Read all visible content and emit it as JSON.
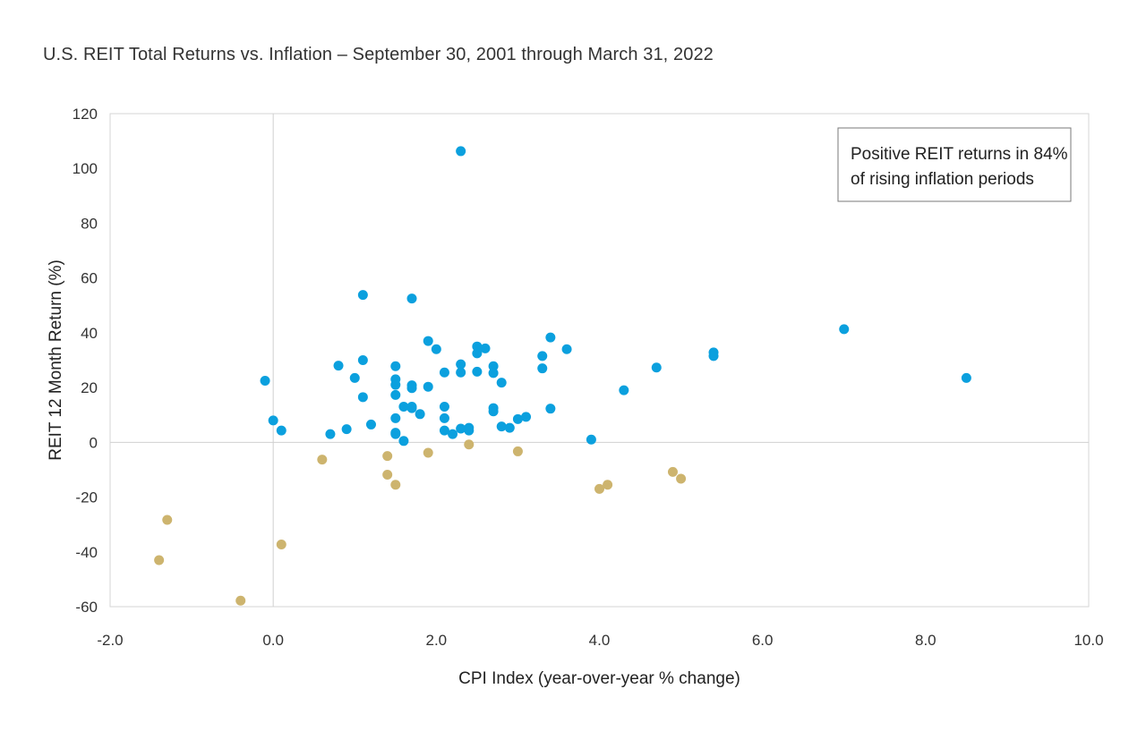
{
  "chart_data": {
    "type": "scatter",
    "title": "U.S. REIT Total Returns vs. Inflation – September 30, 2001 through March 31, 2022",
    "xlabel": "CPI Index (year-over-year % change)",
    "ylabel": "REIT 12 Month Return (%)",
    "xlim": [
      -2,
      10
    ],
    "ylim": [
      -60,
      120
    ],
    "xticks": [
      -2,
      0,
      2,
      4,
      6,
      8,
      10
    ],
    "xtick_labels": [
      "-2.0",
      "0.0",
      "2.0",
      "4.0",
      "6.0",
      "8.0",
      "10.0"
    ],
    "yticks": [
      -60,
      -40,
      -20,
      0,
      20,
      40,
      60,
      80,
      100,
      120
    ],
    "ytick_labels": [
      "-60",
      "-40",
      "-20",
      "0",
      "20",
      "40",
      "60",
      "80",
      "100",
      "120"
    ],
    "grid": false,
    "annotation": {
      "lines": [
        "Positive REIT returns in 84%",
        "of rising inflation periods"
      ]
    },
    "series": [
      {
        "color": "#0BA0DE",
        "points": [
          [
            -0.1,
            22.5
          ],
          [
            0.0,
            8.0
          ],
          [
            0.1,
            4.3
          ],
          [
            0.7,
            3.0
          ],
          [
            0.8,
            28.0
          ],
          [
            0.9,
            4.8
          ],
          [
            1.0,
            23.5
          ],
          [
            1.1,
            53.8
          ],
          [
            1.1,
            30.0
          ],
          [
            1.1,
            16.5
          ],
          [
            1.2,
            6.5
          ],
          [
            1.5,
            27.8
          ],
          [
            1.5,
            23.0
          ],
          [
            1.5,
            21.0
          ],
          [
            1.5,
            17.3
          ],
          [
            1.5,
            8.8
          ],
          [
            1.5,
            3.5
          ],
          [
            1.5,
            3.0
          ],
          [
            1.6,
            13.0
          ],
          [
            1.6,
            0.5
          ],
          [
            1.7,
            52.5
          ],
          [
            1.7,
            20.8
          ],
          [
            1.7,
            19.8
          ],
          [
            1.7,
            13.0
          ],
          [
            1.7,
            12.5
          ],
          [
            1.8,
            10.3
          ],
          [
            1.9,
            37.0
          ],
          [
            1.9,
            20.3
          ],
          [
            2.0,
            34.0
          ],
          [
            2.1,
            25.5
          ],
          [
            2.1,
            13.0
          ],
          [
            2.1,
            8.8
          ],
          [
            2.1,
            4.3
          ],
          [
            2.2,
            3.0
          ],
          [
            2.3,
            106.3
          ],
          [
            2.3,
            28.5
          ],
          [
            2.3,
            25.5
          ],
          [
            2.3,
            5.0
          ],
          [
            2.4,
            5.3
          ],
          [
            2.4,
            4.3
          ],
          [
            2.5,
            35.0
          ],
          [
            2.5,
            32.5
          ],
          [
            2.5,
            25.8
          ],
          [
            2.6,
            34.3
          ],
          [
            2.7,
            27.8
          ],
          [
            2.7,
            25.3
          ],
          [
            2.7,
            12.5
          ],
          [
            2.7,
            11.3
          ],
          [
            2.8,
            21.8
          ],
          [
            2.8,
            5.8
          ],
          [
            2.9,
            5.3
          ],
          [
            3.0,
            8.5
          ],
          [
            3.1,
            9.3
          ],
          [
            3.3,
            31.5
          ],
          [
            3.3,
            27.0
          ],
          [
            3.4,
            38.3
          ],
          [
            3.4,
            12.3
          ],
          [
            3.6,
            34.0
          ],
          [
            3.9,
            1.0
          ],
          [
            4.3,
            19.0
          ],
          [
            4.7,
            27.3
          ],
          [
            5.4,
            32.8
          ],
          [
            5.4,
            31.5
          ],
          [
            7.0,
            41.3
          ],
          [
            8.5,
            23.5
          ]
        ]
      },
      {
        "color": "#CDB46E",
        "points": [
          [
            -1.3,
            -28.3
          ],
          [
            -1.4,
            -43.0
          ],
          [
            -0.4,
            -57.8
          ],
          [
            0.1,
            -37.3
          ],
          [
            0.6,
            -6.3
          ],
          [
            1.4,
            -5.0
          ],
          [
            1.4,
            -11.8
          ],
          [
            1.5,
            -15.5
          ],
          [
            1.9,
            -3.8
          ],
          [
            2.4,
            -0.8
          ],
          [
            3.0,
            -3.3
          ],
          [
            4.0,
            -17.0
          ],
          [
            4.1,
            -15.5
          ],
          [
            4.9,
            -10.8
          ],
          [
            5.0,
            -13.3
          ]
        ]
      }
    ]
  }
}
